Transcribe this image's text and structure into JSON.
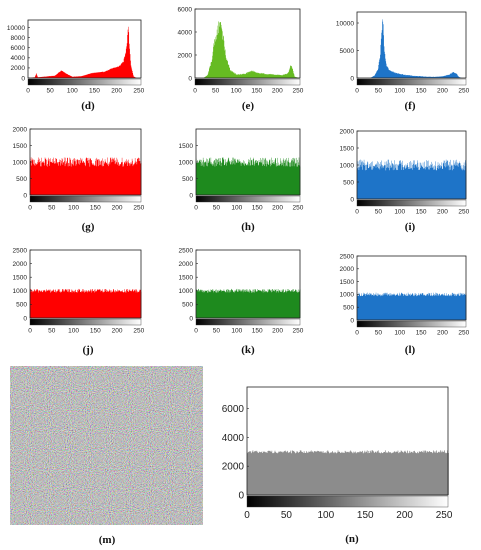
{
  "chart_data": [
    {
      "panel": "d",
      "label": "(d)",
      "type": "area",
      "color": "#ff0000",
      "xlim": [
        0,
        255
      ],
      "ylim": [
        0,
        11500
      ],
      "xticks": [
        0,
        50,
        100,
        150,
        200,
        250
      ],
      "yticks": [
        0,
        2000,
        4000,
        6000,
        8000,
        10000
      ],
      "profile": [
        [
          0,
          0
        ],
        [
          5,
          50
        ],
        [
          15,
          150
        ],
        [
          18,
          900
        ],
        [
          22,
          150
        ],
        [
          35,
          250
        ],
        [
          60,
          450
        ],
        [
          75,
          1500
        ],
        [
          85,
          900
        ],
        [
          100,
          250
        ],
        [
          120,
          350
        ],
        [
          145,
          1000
        ],
        [
          170,
          1200
        ],
        [
          190,
          1900
        ],
        [
          205,
          2300
        ],
        [
          215,
          3300
        ],
        [
          222,
          6000
        ],
        [
          226,
          10500
        ],
        [
          228,
          7000
        ],
        [
          232,
          2500
        ],
        [
          238,
          300
        ],
        [
          245,
          0
        ],
        [
          255,
          0
        ]
      ],
      "noise": 0.05
    },
    {
      "panel": "e",
      "label": "(e)",
      "type": "area",
      "color": "#66bb22",
      "xlim": [
        0,
        255
      ],
      "ylim": [
        0,
        6000
      ],
      "xticks": [
        0,
        50,
        100,
        150,
        200,
        250
      ],
      "yticks": [
        0,
        2000,
        4000,
        6000
      ],
      "profile": [
        [
          0,
          0
        ],
        [
          20,
          0
        ],
        [
          30,
          250
        ],
        [
          40,
          1500
        ],
        [
          45,
          2700
        ],
        [
          50,
          3500
        ],
        [
          55,
          4200
        ],
        [
          60,
          5000
        ],
        [
          64,
          4600
        ],
        [
          68,
          3500
        ],
        [
          75,
          1800
        ],
        [
          85,
          700
        ],
        [
          100,
          300
        ],
        [
          120,
          350
        ],
        [
          140,
          650
        ],
        [
          150,
          450
        ],
        [
          170,
          350
        ],
        [
          190,
          300
        ],
        [
          210,
          250
        ],
        [
          225,
          400
        ],
        [
          232,
          1100
        ],
        [
          237,
          700
        ],
        [
          242,
          100
        ],
        [
          255,
          0
        ]
      ],
      "noise": 0.12
    },
    {
      "panel": "f",
      "label": "(f)",
      "type": "area",
      "color": "#1e74c8",
      "xlim": [
        0,
        255
      ],
      "ylim": [
        0,
        12000
      ],
      "xticks": [
        0,
        50,
        100,
        150,
        200,
        250
      ],
      "yticks": [
        0,
        5000,
        10000
      ],
      "profile": [
        [
          0,
          0
        ],
        [
          30,
          0
        ],
        [
          40,
          400
        ],
        [
          48,
          1400
        ],
        [
          53,
          3500
        ],
        [
          57,
          8000
        ],
        [
          60,
          11200
        ],
        [
          63,
          6000
        ],
        [
          68,
          2500
        ],
        [
          75,
          1500
        ],
        [
          90,
          900
        ],
        [
          110,
          600
        ],
        [
          130,
          400
        ],
        [
          160,
          250
        ],
        [
          180,
          200
        ],
        [
          200,
          300
        ],
        [
          215,
          600
        ],
        [
          225,
          1100
        ],
        [
          232,
          800
        ],
        [
          238,
          200
        ],
        [
          245,
          0
        ],
        [
          255,
          0
        ]
      ],
      "noise": 0.1
    },
    {
      "panel": "g",
      "label": "(g)",
      "type": "area",
      "color": "#ff0000",
      "xlim": [
        0,
        255
      ],
      "ylim": [
        0,
        2000
      ],
      "xticks": [
        0,
        50,
        100,
        150,
        200,
        250
      ],
      "yticks": [
        0,
        500,
        1000,
        1500,
        2000
      ],
      "flat": 1000,
      "noise": 0.14
    },
    {
      "panel": "h",
      "label": "(h)",
      "type": "area",
      "color": "#1e8a1e",
      "xlim": [
        0,
        255
      ],
      "ylim": [
        0,
        2000
      ],
      "xticks": [
        0,
        50,
        100,
        150,
        200,
        250
      ],
      "yticks": [
        0,
        500,
        1000,
        1500
      ],
      "flat": 1000,
      "noise": 0.14
    },
    {
      "panel": "i",
      "label": "(i)",
      "type": "area",
      "color": "#1e74c8",
      "xlim": [
        0,
        255
      ],
      "ylim": [
        0,
        2000
      ],
      "xticks": [
        0,
        50,
        100,
        150,
        200,
        250
      ],
      "yticks": [
        0,
        500,
        1000,
        1500,
        2000
      ],
      "flat": 1000,
      "noise": 0.16
    },
    {
      "panel": "j",
      "label": "(j)",
      "type": "area",
      "color": "#ff0000",
      "xlim": [
        0,
        255
      ],
      "ylim": [
        0,
        2500
      ],
      "xticks": [
        0,
        50,
        100,
        150,
        200,
        250
      ],
      "yticks": [
        0,
        500,
        1000,
        1500,
        2000,
        2500
      ],
      "flat": 1000,
      "noise": 0.07
    },
    {
      "panel": "k",
      "label": "(k)",
      "type": "area",
      "color": "#1e8a1e",
      "xlim": [
        0,
        255
      ],
      "ylim": [
        0,
        2500
      ],
      "xticks": [
        0,
        50,
        100,
        150,
        200,
        250
      ],
      "yticks": [
        0,
        500,
        1000,
        1500,
        2000,
        2500
      ],
      "flat": 1000,
      "noise": 0.07
    },
    {
      "panel": "l",
      "label": "(l)",
      "type": "area",
      "color": "#1e74c8",
      "xlim": [
        0,
        255
      ],
      "ylim": [
        0,
        2500
      ],
      "xticks": [
        0,
        50,
        100,
        150,
        200,
        250
      ],
      "yticks": [
        0,
        500,
        1000,
        1500,
        2000,
        2500
      ],
      "flat": 1000,
      "noise": 0.07
    },
    {
      "panel": "n",
      "label": "(n)",
      "type": "area",
      "color": "#8c8c8c",
      "xlim": [
        0,
        255
      ],
      "ylim": [
        0,
        7500
      ],
      "xticks": [
        0,
        50,
        100,
        150,
        200,
        250
      ],
      "yticks": [
        0,
        2000,
        4000,
        6000
      ],
      "flat": 3000,
      "noise": 0.035
    }
  ],
  "image_panel": {
    "panel": "m",
    "label": "(m)",
    "content": "noise image"
  }
}
